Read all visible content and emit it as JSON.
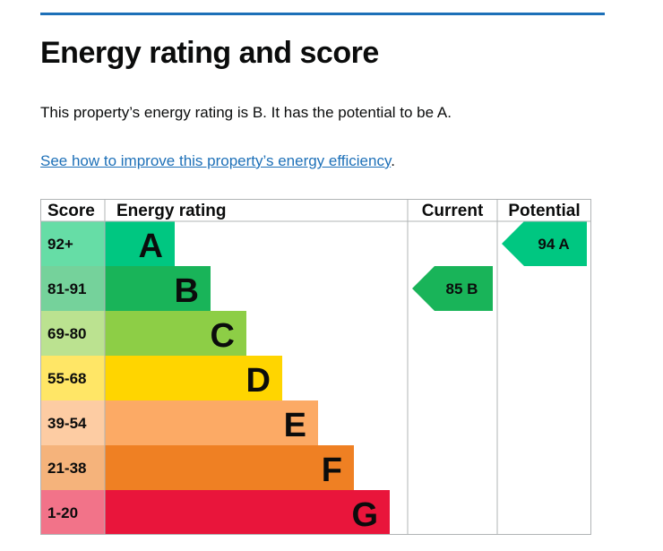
{
  "page": {
    "title": "Energy rating and score",
    "intro": "This property’s energy rating is B. It has the potential to be A.",
    "help_link": "See how to improve this property’s energy efficiency",
    "help_suffix": "."
  },
  "chart_data": {
    "type": "bar",
    "headers": {
      "score": "Score",
      "rating": "Energy rating",
      "current": "Current",
      "potential": "Potential"
    },
    "bands": [
      {
        "range": "92+",
        "letter": "A",
        "color": "#00c781",
        "score_bg": "#66dda6"
      },
      {
        "range": "81-91",
        "letter": "B",
        "color": "#19b459",
        "score_bg": "#75d29b"
      },
      {
        "range": "69-80",
        "letter": "C",
        "color": "#8dce46",
        "score_bg": "#bbe290"
      },
      {
        "range": "55-68",
        "letter": "D",
        "color": "#ffd500",
        "score_bg": "#ffe666"
      },
      {
        "range": "39-54",
        "letter": "E",
        "color": "#fcaa65",
        "score_bg": "#fdcca3"
      },
      {
        "range": "21-38",
        "letter": "F",
        "color": "#ef8023",
        "score_bg": "#f5b37b"
      },
      {
        "range": "1-20",
        "letter": "G",
        "color": "#e9153b",
        "score_bg": "#f27389"
      }
    ],
    "current": {
      "score": 85,
      "letter": "B",
      "label": "85  B",
      "color": "#19b459"
    },
    "potential": {
      "score": 94,
      "letter": "A",
      "label": "94  A",
      "color": "#00c781"
    }
  }
}
